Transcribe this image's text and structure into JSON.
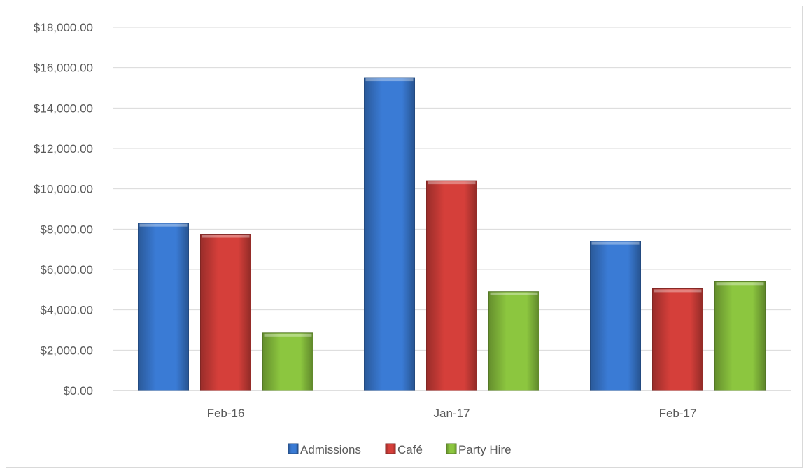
{
  "chart_data": {
    "type": "bar",
    "title": "",
    "xlabel": "",
    "ylabel": "",
    "categories": [
      "Feb-16",
      "Jan-17",
      "Feb-17"
    ],
    "series": [
      {
        "name": "Admissions",
        "values": [
          8300,
          15500,
          7400
        ],
        "color": "#3a7bd5"
      },
      {
        "name": "Café",
        "values": [
          7750,
          10400,
          5050
        ],
        "color": "#d53f3a"
      },
      {
        "name": "Party Hire",
        "values": [
          2850,
          4900,
          5400
        ],
        "color": "#8cc63f"
      }
    ],
    "ylim": [
      0,
      18000
    ],
    "yticks": [
      0,
      2000,
      4000,
      6000,
      8000,
      10000,
      12000,
      14000,
      16000,
      18000
    ],
    "ytick_labels": [
      "$0.00",
      "$2,000.00",
      "$4,000.00",
      "$6,000.00",
      "$8,000.00",
      "$10,000.00",
      "$12,000.00",
      "$14,000.00",
      "$16,000.00",
      "$18,000.00"
    ],
    "grid": true,
    "legend_position": "bottom"
  }
}
